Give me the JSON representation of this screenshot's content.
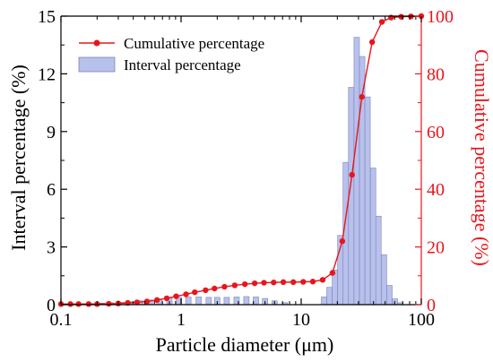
{
  "chart_data": {
    "type": "bar+line",
    "xlabel": "Particle diameter (μm)",
    "ylabel_left": "Interval percentage (%)",
    "ylabel_right": "Cumulative percentage (%)",
    "x_scale": "log",
    "xlim": [
      0.1,
      100
    ],
    "x_ticks": [
      {
        "value": 0.1,
        "label": "0.1"
      },
      {
        "value": 1,
        "label": "1"
      },
      {
        "value": 10,
        "label": "10"
      },
      {
        "value": 100,
        "label": "100"
      }
    ],
    "ylim_left": [
      0,
      15
    ],
    "y_ticks_left": [
      "0",
      "3",
      "6",
      "9",
      "12",
      "15"
    ],
    "ylim_right": [
      0,
      100
    ],
    "y_ticks_right": [
      "0",
      "20",
      "40",
      "60",
      "80",
      "100"
    ],
    "legend_position": "top-left",
    "colors": {
      "cumulative": "#e8161b",
      "interval_fill": "#b8c0ec",
      "interval_stroke": "#7d85b8",
      "right_axis": "#e8161b"
    },
    "series": [
      {
        "name": "Cumulative percentage",
        "type": "line",
        "axis": "right",
        "points": [
          {
            "x": 0.1,
            "y": 0.2
          },
          {
            "x": 0.12,
            "y": 0.2
          },
          {
            "x": 0.14,
            "y": 0.2
          },
          {
            "x": 0.17,
            "y": 0.2
          },
          {
            "x": 0.2,
            "y": 0.2
          },
          {
            "x": 0.25,
            "y": 0.3
          },
          {
            "x": 0.3,
            "y": 0.4
          },
          {
            "x": 0.36,
            "y": 0.6
          },
          {
            "x": 0.43,
            "y": 0.8
          },
          {
            "x": 0.52,
            "y": 1.1
          },
          {
            "x": 0.63,
            "y": 1.6
          },
          {
            "x": 0.76,
            "y": 2.2
          },
          {
            "x": 0.91,
            "y": 2.9
          },
          {
            "x": 1.1,
            "y": 3.6
          },
          {
            "x": 1.3,
            "y": 4.3
          },
          {
            "x": 1.6,
            "y": 5.0
          },
          {
            "x": 1.9,
            "y": 5.6
          },
          {
            "x": 2.3,
            "y": 6.2
          },
          {
            "x": 2.8,
            "y": 6.7
          },
          {
            "x": 3.4,
            "y": 7.1
          },
          {
            "x": 4.1,
            "y": 7.4
          },
          {
            "x": 4.9,
            "y": 7.6
          },
          {
            "x": 5.9,
            "y": 7.7
          },
          {
            "x": 7.1,
            "y": 7.8
          },
          {
            "x": 8.6,
            "y": 7.8
          },
          {
            "x": 10.4,
            "y": 7.9
          },
          {
            "x": 12.5,
            "y": 8.0
          },
          {
            "x": 15.1,
            "y": 8.6
          },
          {
            "x": 18.2,
            "y": 11
          },
          {
            "x": 22,
            "y": 22
          },
          {
            "x": 26.5,
            "y": 45
          },
          {
            "x": 32,
            "y": 72
          },
          {
            "x": 39,
            "y": 91
          },
          {
            "x": 47,
            "y": 98
          },
          {
            "x": 56,
            "y": 99.5
          },
          {
            "x": 68,
            "y": 99.8
          },
          {
            "x": 82,
            "y": 99.9
          },
          {
            "x": 100,
            "y": 100
          }
        ]
      },
      {
        "name": "Interval percentage",
        "type": "bar",
        "axis": "left",
        "bins": [
          {
            "x": 0.15,
            "y": 0.05
          },
          {
            "x": 0.18,
            "y": 0.05
          },
          {
            "x": 0.22,
            "y": 0.08
          },
          {
            "x": 0.26,
            "y": 0.1
          },
          {
            "x": 0.32,
            "y": 0.12
          },
          {
            "x": 0.38,
            "y": 0.15
          },
          {
            "x": 0.46,
            "y": 0.2
          },
          {
            "x": 0.55,
            "y": 0.25
          },
          {
            "x": 0.66,
            "y": 0.3
          },
          {
            "x": 0.8,
            "y": 0.35
          },
          {
            "x": 0.96,
            "y": 0.38
          },
          {
            "x": 1.15,
            "y": 0.4
          },
          {
            "x": 1.4,
            "y": 0.4
          },
          {
            "x": 1.7,
            "y": 0.38
          },
          {
            "x": 2.0,
            "y": 0.38
          },
          {
            "x": 2.4,
            "y": 0.38
          },
          {
            "x": 2.9,
            "y": 0.4
          },
          {
            "x": 3.5,
            "y": 0.42
          },
          {
            "x": 4.2,
            "y": 0.4
          },
          {
            "x": 5.0,
            "y": 0.32
          },
          {
            "x": 6.0,
            "y": 0.2
          },
          {
            "x": 7.3,
            "y": 0.1
          },
          {
            "x": 15.5,
            "y": 0.4
          },
          {
            "x": 17.2,
            "y": 0.9
          },
          {
            "x": 19.1,
            "y": 1.8
          },
          {
            "x": 21.2,
            "y": 3.6
          },
          {
            "x": 23.5,
            "y": 7.4
          },
          {
            "x": 26.1,
            "y": 11.3
          },
          {
            "x": 29.0,
            "y": 13.9
          },
          {
            "x": 32.2,
            "y": 12.9
          },
          {
            "x": 35.7,
            "y": 10.8
          },
          {
            "x": 39.7,
            "y": 7.1
          },
          {
            "x": 44.0,
            "y": 4.6
          },
          {
            "x": 48.9,
            "y": 2.6
          },
          {
            "x": 54.3,
            "y": 1.0
          },
          {
            "x": 60.3,
            "y": 0.3
          },
          {
            "x": 67.0,
            "y": 0.1
          }
        ]
      }
    ]
  }
}
